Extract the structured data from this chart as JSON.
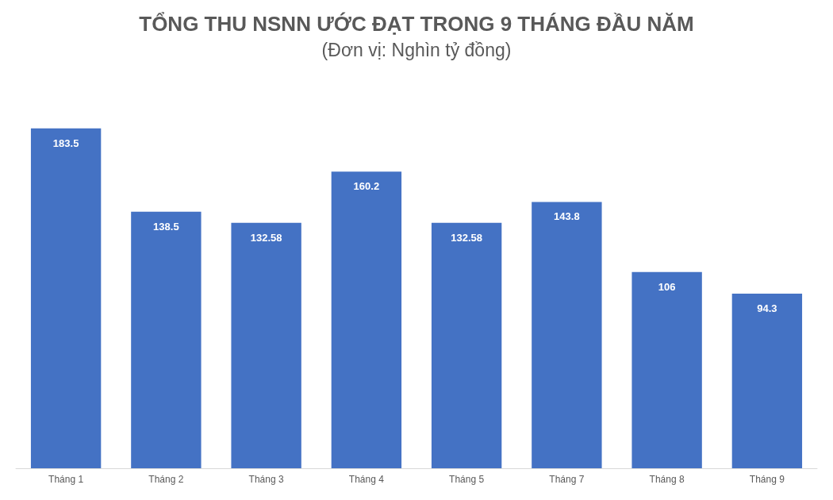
{
  "chart_data": {
    "type": "bar",
    "title": "TỔNG THU NSNN ƯỚC ĐẠT TRONG 9 THÁNG ĐẦU NĂM",
    "subtitle": "(Đơn vị: Nghìn tỷ đồng)",
    "categories": [
      "Tháng 1",
      "Tháng 2",
      "Tháng 3",
      "Tháng 4",
      "Tháng 5",
      "Tháng 7",
      "Tháng 8",
      "Tháng 9"
    ],
    "values": [
      183.5,
      138.5,
      132.58,
      160.2,
      132.58,
      143.8,
      106,
      94.3
    ],
    "color": "#4472c4",
    "data_labels": true
  }
}
